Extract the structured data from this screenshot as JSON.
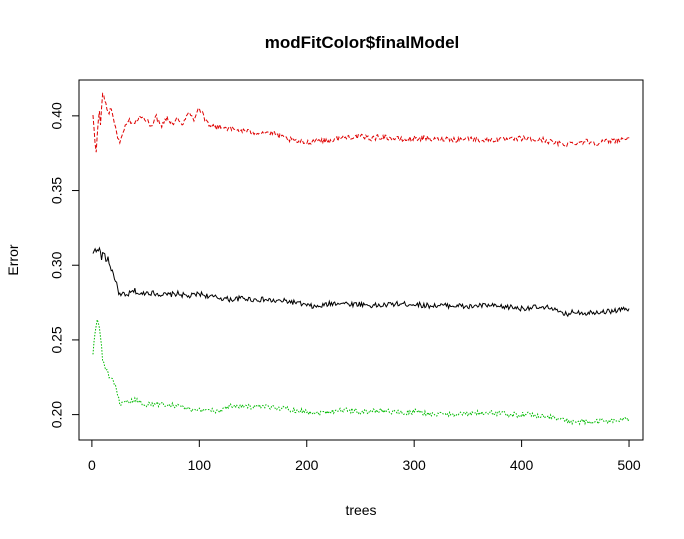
{
  "chart_data": {
    "type": "line",
    "title": "modFitColor$finalModel",
    "xlabel": "trees",
    "ylabel": "Error",
    "xlim": [
      -12,
      513
    ],
    "ylim": [
      0.183,
      0.424
    ],
    "xticks": [
      0,
      100,
      200,
      300,
      400,
      500
    ],
    "xtick_labels": [
      "0",
      "100",
      "200",
      "300",
      "400",
      "500"
    ],
    "yticks": [
      0.2,
      0.25,
      0.3,
      0.35,
      0.4
    ],
    "ytick_labels": [
      "0.20",
      "0.25",
      "0.30",
      "0.35",
      "0.40"
    ],
    "grid": false,
    "legend": "none",
    "series": [
      {
        "color": "#000000",
        "dash": "solid",
        "points": [
          [
            1,
            0.307
          ],
          [
            3,
            0.312
          ],
          [
            5,
            0.309
          ],
          [
            7,
            0.311
          ],
          [
            9,
            0.305
          ],
          [
            11,
            0.309
          ],
          [
            13,
            0.303
          ],
          [
            15,
            0.305
          ],
          [
            17,
            0.299
          ],
          [
            19,
            0.296
          ],
          [
            21,
            0.292
          ],
          [
            23,
            0.287
          ],
          [
            25,
            0.282
          ],
          [
            27,
            0.279
          ],
          [
            29,
            0.281
          ],
          [
            31,
            0.279
          ],
          [
            35,
            0.281
          ],
          [
            40,
            0.283
          ],
          [
            45,
            0.28
          ],
          [
            50,
            0.282
          ],
          [
            60,
            0.281
          ],
          [
            70,
            0.28
          ],
          [
            80,
            0.281
          ],
          [
            90,
            0.279
          ],
          [
            100,
            0.281
          ],
          [
            110,
            0.279
          ],
          [
            120,
            0.278
          ],
          [
            130,
            0.277
          ],
          [
            140,
            0.278
          ],
          [
            150,
            0.277
          ],
          [
            160,
            0.277
          ],
          [
            170,
            0.276
          ],
          [
            180,
            0.276
          ],
          [
            190,
            0.275
          ],
          [
            200,
            0.273
          ],
          [
            210,
            0.272
          ],
          [
            220,
            0.274
          ],
          [
            230,
            0.275
          ],
          [
            240,
            0.274
          ],
          [
            250,
            0.274
          ],
          [
            260,
            0.273
          ],
          [
            270,
            0.273
          ],
          [
            280,
            0.274
          ],
          [
            290,
            0.274
          ],
          [
            300,
            0.274
          ],
          [
            310,
            0.273
          ],
          [
            320,
            0.273
          ],
          [
            330,
            0.273
          ],
          [
            340,
            0.273
          ],
          [
            350,
            0.272
          ],
          [
            360,
            0.273
          ],
          [
            370,
            0.273
          ],
          [
            380,
            0.272
          ],
          [
            390,
            0.272
          ],
          [
            400,
            0.271
          ],
          [
            410,
            0.272
          ],
          [
            420,
            0.271
          ],
          [
            428,
            0.272
          ],
          [
            435,
            0.268
          ],
          [
            440,
            0.267
          ],
          [
            450,
            0.269
          ],
          [
            460,
            0.268
          ],
          [
            470,
            0.269
          ],
          [
            480,
            0.269
          ],
          [
            490,
            0.27
          ],
          [
            500,
            0.271
          ]
        ]
      },
      {
        "color": "#DF0000",
        "dash": "dashed",
        "points": [
          [
            1,
            0.4
          ],
          [
            2,
            0.391
          ],
          [
            3,
            0.38
          ],
          [
            4,
            0.375
          ],
          [
            5,
            0.388
          ],
          [
            6,
            0.398
          ],
          [
            7,
            0.402
          ],
          [
            8,
            0.395
          ],
          [
            9,
            0.405
          ],
          [
            10,
            0.415
          ],
          [
            11,
            0.413
          ],
          [
            12,
            0.41
          ],
          [
            14,
            0.406
          ],
          [
            16,
            0.401
          ],
          [
            18,
            0.405
          ],
          [
            20,
            0.398
          ],
          [
            22,
            0.393
          ],
          [
            24,
            0.386
          ],
          [
            26,
            0.381
          ],
          [
            28,
            0.386
          ],
          [
            30,
            0.392
          ],
          [
            35,
            0.397
          ],
          [
            40,
            0.395
          ],
          [
            45,
            0.4
          ],
          [
            50,
            0.397
          ],
          [
            55,
            0.394
          ],
          [
            60,
            0.399
          ],
          [
            65,
            0.394
          ],
          [
            70,
            0.399
          ],
          [
            75,
            0.395
          ],
          [
            80,
            0.398
          ],
          [
            85,
            0.395
          ],
          [
            90,
            0.402
          ],
          [
            95,
            0.398
          ],
          [
            98,
            0.404
          ],
          [
            100,
            0.405
          ],
          [
            103,
            0.402
          ],
          [
            105,
            0.398
          ],
          [
            110,
            0.394
          ],
          [
            115,
            0.392
          ],
          [
            120,
            0.393
          ],
          [
            130,
            0.391
          ],
          [
            140,
            0.39
          ],
          [
            150,
            0.389
          ],
          [
            160,
            0.389
          ],
          [
            170,
            0.388
          ],
          [
            175,
            0.386
          ],
          [
            180,
            0.385
          ],
          [
            190,
            0.383
          ],
          [
            200,
            0.382
          ],
          [
            210,
            0.384
          ],
          [
            220,
            0.383
          ],
          [
            230,
            0.385
          ],
          [
            240,
            0.386
          ],
          [
            250,
            0.386
          ],
          [
            260,
            0.385
          ],
          [
            270,
            0.386
          ],
          [
            280,
            0.385
          ],
          [
            290,
            0.384
          ],
          [
            300,
            0.385
          ],
          [
            310,
            0.385
          ],
          [
            320,
            0.384
          ],
          [
            330,
            0.385
          ],
          [
            340,
            0.384
          ],
          [
            350,
            0.385
          ],
          [
            360,
            0.384
          ],
          [
            370,
            0.384
          ],
          [
            380,
            0.384
          ],
          [
            390,
            0.384
          ],
          [
            400,
            0.385
          ],
          [
            410,
            0.384
          ],
          [
            420,
            0.384
          ],
          [
            430,
            0.382
          ],
          [
            440,
            0.381
          ],
          [
            450,
            0.382
          ],
          [
            460,
            0.383
          ],
          [
            470,
            0.382
          ],
          [
            480,
            0.383
          ],
          [
            490,
            0.384
          ],
          [
            500,
            0.385
          ]
        ]
      },
      {
        "color": "#00BB00",
        "dash": "dotted",
        "points": [
          [
            1,
            0.24
          ],
          [
            2,
            0.248
          ],
          [
            3,
            0.255
          ],
          [
            4,
            0.26
          ],
          [
            5,
            0.263
          ],
          [
            6,
            0.262
          ],
          [
            7,
            0.257
          ],
          [
            8,
            0.252
          ],
          [
            9,
            0.246
          ],
          [
            10,
            0.237
          ],
          [
            12,
            0.232
          ],
          [
            14,
            0.229
          ],
          [
            16,
            0.226
          ],
          [
            18,
            0.224
          ],
          [
            20,
            0.221
          ],
          [
            22,
            0.218
          ],
          [
            24,
            0.212
          ],
          [
            26,
            0.208
          ],
          [
            28,
            0.207
          ],
          [
            30,
            0.207
          ],
          [
            35,
            0.208
          ],
          [
            40,
            0.21
          ],
          [
            45,
            0.208
          ],
          [
            50,
            0.207
          ],
          [
            60,
            0.207
          ],
          [
            70,
            0.207
          ],
          [
            80,
            0.206
          ],
          [
            90,
            0.204
          ],
          [
            95,
            0.202
          ],
          [
            100,
            0.203
          ],
          [
            105,
            0.203
          ],
          [
            110,
            0.204
          ],
          [
            115,
            0.202
          ],
          [
            120,
            0.203
          ],
          [
            125,
            0.205
          ],
          [
            130,
            0.206
          ],
          [
            140,
            0.206
          ],
          [
            150,
            0.205
          ],
          [
            160,
            0.205
          ],
          [
            170,
            0.205
          ],
          [
            180,
            0.204
          ],
          [
            190,
            0.203
          ],
          [
            200,
            0.202
          ],
          [
            210,
            0.201
          ],
          [
            220,
            0.202
          ],
          [
            230,
            0.203
          ],
          [
            240,
            0.203
          ],
          [
            250,
            0.202
          ],
          [
            260,
            0.202
          ],
          [
            270,
            0.203
          ],
          [
            280,
            0.202
          ],
          [
            290,
            0.201
          ],
          [
            300,
            0.202
          ],
          [
            310,
            0.201
          ],
          [
            320,
            0.2
          ],
          [
            330,
            0.2
          ],
          [
            340,
            0.201
          ],
          [
            350,
            0.2
          ],
          [
            360,
            0.201
          ],
          [
            370,
            0.201
          ],
          [
            380,
            0.201
          ],
          [
            390,
            0.2
          ],
          [
            400,
            0.2
          ],
          [
            410,
            0.2
          ],
          [
            420,
            0.199
          ],
          [
            430,
            0.198
          ],
          [
            440,
            0.196
          ],
          [
            450,
            0.195
          ],
          [
            460,
            0.195
          ],
          [
            470,
            0.195
          ],
          [
            480,
            0.196
          ],
          [
            490,
            0.196
          ],
          [
            500,
            0.197
          ]
        ]
      }
    ]
  }
}
